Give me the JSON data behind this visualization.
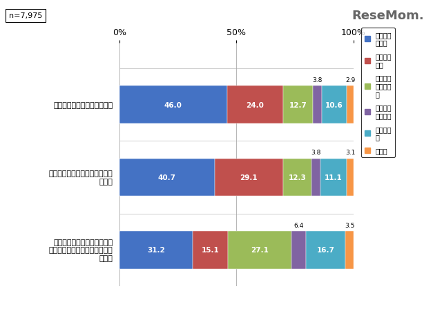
{
  "categories": [
    "就職活動に混乱が生じている",
    "早々に就職活動を終了する学生\nがいる",
    "卒業論文・修士論文、卒業研\n究・修了研究を阷害する影響が\n増えた"
  ],
  "stack": [
    {
      "label": "大いにそう思う",
      "color": "#4472C4",
      "values": [
        46.0,
        40.7,
        31.2
      ]
    },
    {
      "label": "大体そう思う",
      "color": "#C0504D",
      "values": [
        24.0,
        29.1,
        15.1
      ]
    },
    {
      "label": "あまりそう思わない",
      "color": "#9BBB59",
      "values": [
        12.7,
        12.3,
        27.1
      ]
    },
    {
      "label": "全くそう思わない",
      "color": "#8064A2",
      "values": [
        3.8,
        3.8,
        6.4
      ]
    },
    {
      "label": "わからない",
      "color": "#4BACC6",
      "values": [
        10.6,
        11.1,
        16.7
      ]
    },
    {
      "label": "無回答",
      "color": "#F79646",
      "values": [
        2.9,
        3.1,
        3.5
      ]
    }
  ],
  "inside_labels": {
    "0_0": "46.0",
    "0_1": "40.7",
    "0_2": "31.2",
    "1_0": "24.0",
    "1_1": "29.1",
    "1_2": "15.1",
    "2_0": "12.7",
    "2_1": "12.3",
    "2_2": "27.1",
    "4_0": "10.6",
    "4_1": "11.1",
    "4_2": "16.7"
  },
  "outside_labels": {
    "3_0": "3.8",
    "3_1": "3.8",
    "3_2": "6.4",
    "5_0": "2.9",
    "5_1": "3.1",
    "5_2": "3.5"
  },
  "legend_labels": [
    "大いにそ\nう思う",
    "大体そう\n思う",
    "あまりそ\nう思わな\nい",
    "全くそう\n思わない",
    "わからな\nい",
    "無回答"
  ],
  "legend_colors": [
    "#4472C4",
    "#C0504D",
    "#9BBB59",
    "#8064A2",
    "#4BACC6",
    "#F79646"
  ],
  "n_label": "n=7,975",
  "background_color": "#FFFFFF"
}
